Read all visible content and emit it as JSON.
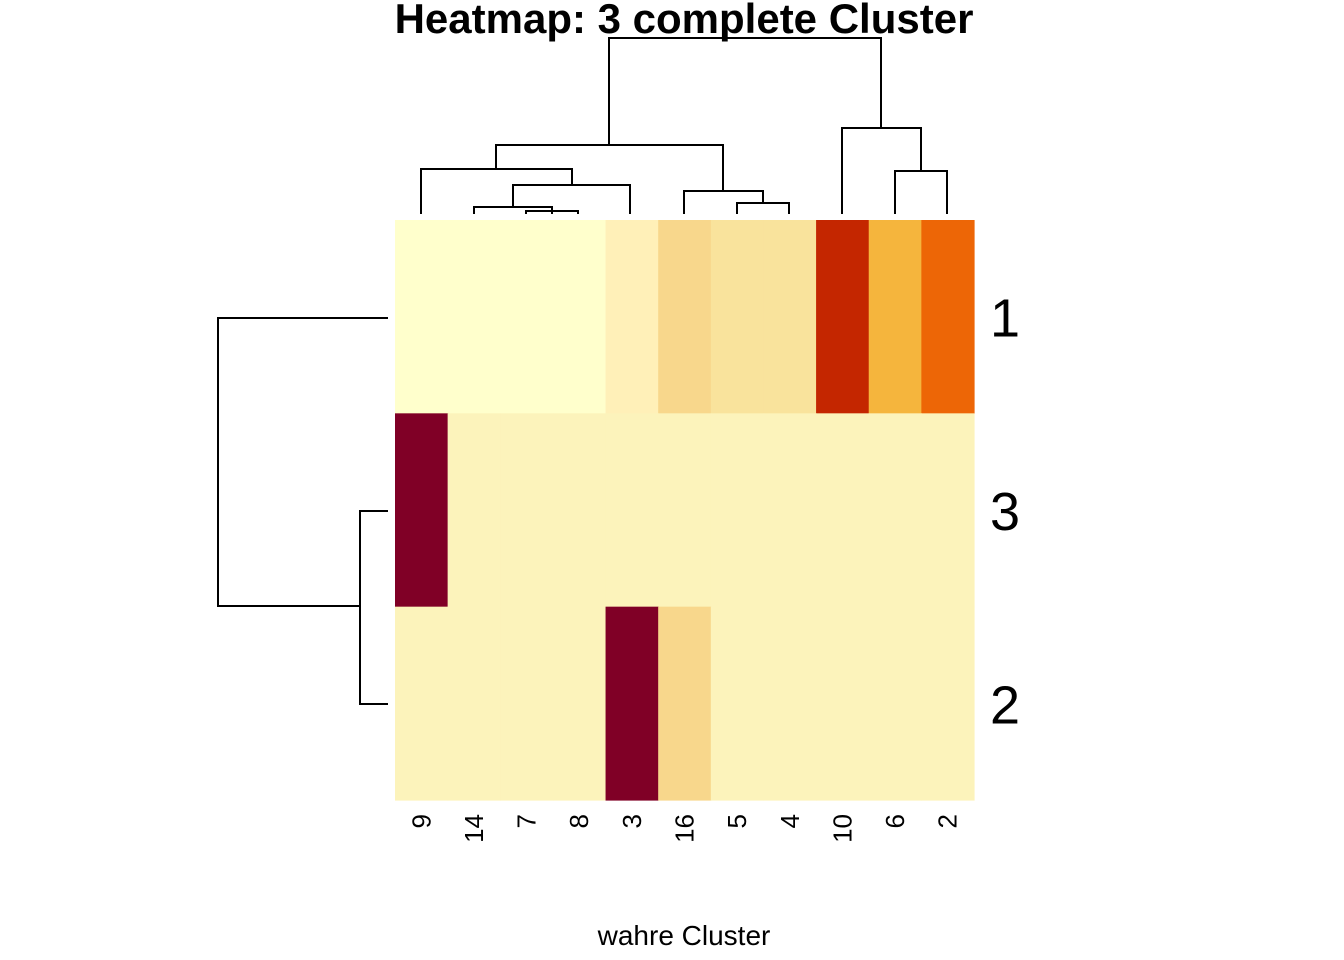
{
  "chart_data": {
    "type": "heatmap",
    "title": "Heatmap: 3 complete Cluster",
    "xlabel": "wahre Cluster",
    "ylabel": "",
    "columns": [
      "9",
      "14",
      "7",
      "8",
      "3",
      "16",
      "5",
      "4",
      "10",
      "6",
      "2"
    ],
    "rows": [
      "1",
      "3",
      "2"
    ],
    "colors": [
      "#FFFFCC",
      "#FFF0B8",
      "#F8D78C",
      "#F9E39C",
      "#FCF3BB",
      "#F5B53D",
      "#ED6606",
      "#C42600",
      "#800026"
    ],
    "cell_colors": [
      [
        "#FFFFCC",
        "#FFFFCC",
        "#FFFFCC",
        "#FFFFCC",
        "#FFF0B8",
        "#F8D78C",
        "#F9E39C",
        "#F9E39C",
        "#C42600",
        "#F5B53D",
        "#ED6606"
      ],
      [
        "#800026",
        "#FCF3BB",
        "#FCF3BB",
        "#FCF3BB",
        "#FCF3BB",
        "#FCF3BB",
        "#FCF3BB",
        "#FCF3BB",
        "#FCF3BB",
        "#FCF3BB",
        "#FCF3BB"
      ],
      [
        "#FCF3BB",
        "#FCF3BB",
        "#FCF3BB",
        "#FCF3BB",
        "#800026",
        "#F8D78C",
        "#FCF3BB",
        "#FCF3BB",
        "#FCF3BB",
        "#FCF3BB",
        "#FCF3BB"
      ]
    ],
    "column_dendrogram": true,
    "row_dendrogram": true,
    "legend": "none"
  }
}
